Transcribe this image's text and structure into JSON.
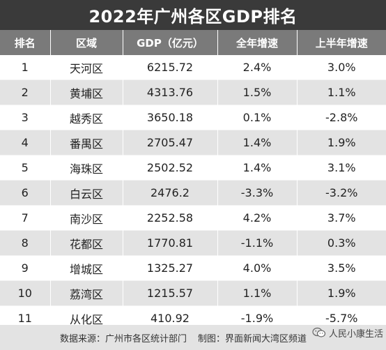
{
  "title": "2022年广州各区GDP排名",
  "headers": [
    "排名",
    "区域",
    "GDP（亿元）",
    "全年增速",
    "上半年增速"
  ],
  "rows": [
    {
      "rank": "1",
      "district": "天河区",
      "gdp": "6215.72",
      "annual": "2.4%",
      "half": "3.0%"
    },
    {
      "rank": "2",
      "district": "黄埔区",
      "gdp": "4313.76",
      "annual": "1.5%",
      "half": "1.1%"
    },
    {
      "rank": "3",
      "district": "越秀区",
      "gdp": "3650.18",
      "annual": "0.1%",
      "half": "-2.8%"
    },
    {
      "rank": "4",
      "district": "番禺区",
      "gdp": "2705.47",
      "annual": "1.4%",
      "half": "1.9%"
    },
    {
      "rank": "5",
      "district": "海珠区",
      "gdp": "2502.52",
      "annual": "1.4%",
      "half": "3.1%"
    },
    {
      "rank": "6",
      "district": "白云区",
      "gdp": "2476.2",
      "annual": "-3.3%",
      "half": "-3.2%"
    },
    {
      "rank": "7",
      "district": "南沙区",
      "gdp": "2252.58",
      "annual": "4.2%",
      "half": "3.7%"
    },
    {
      "rank": "8",
      "district": "花都区",
      "gdp": "1770.81",
      "annual": "-1.1%",
      "half": "0.3%"
    },
    {
      "rank": "9",
      "district": "增城区",
      "gdp": "1325.27",
      "annual": "4.0%",
      "half": "3.5%"
    },
    {
      "rank": "10",
      "district": "荔湾区",
      "gdp": "1215.57",
      "annual": "1.1%",
      "half": "1.9%"
    },
    {
      "rank": "11",
      "district": "从化区",
      "gdp": "410.92",
      "annual": "-1.9%",
      "half": "-5.7%"
    }
  ],
  "footer": {
    "source": "数据来源：广州市各区统计部门",
    "maker": "制图：界面新闻大湾区频道"
  },
  "watermark": {
    "text": "人民小康生活",
    "icon": "wechat-icon"
  },
  "colors": {
    "title_bg": "#3a3a3a",
    "header_bg": "#7a7a7a",
    "stripe": "#e3e3e3"
  }
}
